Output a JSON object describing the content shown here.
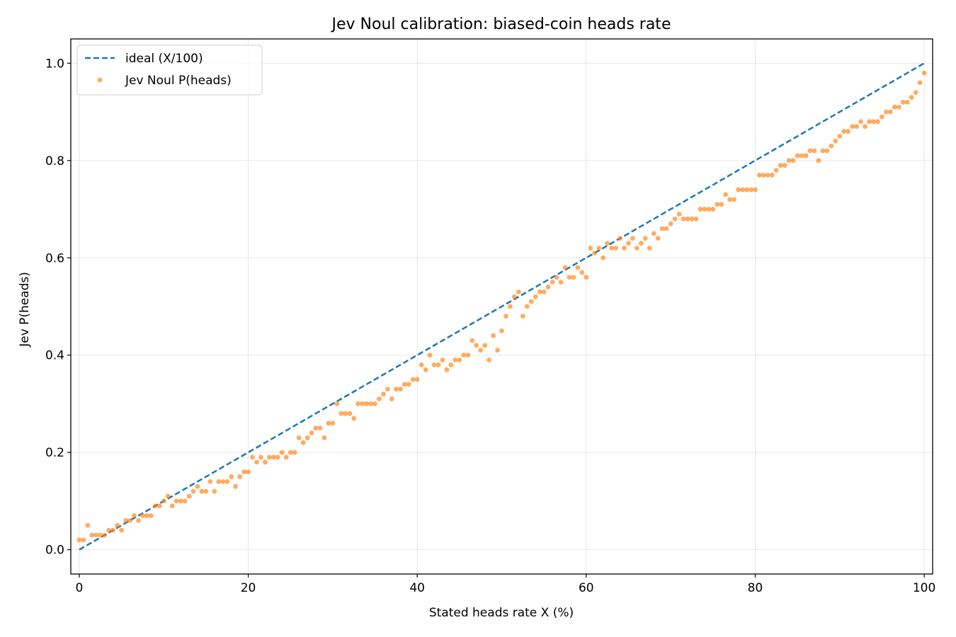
{
  "chart_data": {
    "type": "scatter",
    "title": "Jev Noul calibration: biased-coin heads rate",
    "xlabel": "Stated heads rate X (%)",
    "ylabel": "Jev P(heads)",
    "xlim": [
      -1,
      101
    ],
    "ylim": [
      -0.05,
      1.05
    ],
    "grid": true,
    "legend_position": "top-left",
    "x_ticks": [
      0,
      20,
      40,
      60,
      80,
      100
    ],
    "x_tick_labels": [
      "0",
      "20",
      "40",
      "60",
      "80",
      "100"
    ],
    "y_ticks": [
      0.0,
      0.2,
      0.4,
      0.6,
      0.8,
      1.0
    ],
    "y_tick_labels": [
      "0.0",
      "0.2",
      "0.4",
      "0.6",
      "0.8",
      "1.0"
    ],
    "series": [
      {
        "name": "ideal (X/100)",
        "kind": "line",
        "style": "dashed",
        "color": "#1f77b4",
        "x": [
          0,
          100
        ],
        "y": [
          0.0,
          1.0
        ]
      },
      {
        "name": "Jev Noul P(heads)",
        "kind": "scatter",
        "color": "#ff7f0e",
        "points": [
          [
            0,
            0.02
          ],
          [
            0.5,
            0.02
          ],
          [
            1,
            0.05
          ],
          [
            1.5,
            0.03
          ],
          [
            2,
            0.03
          ],
          [
            2.5,
            0.03
          ],
          [
            3,
            0.03
          ],
          [
            3.5,
            0.04
          ],
          [
            4,
            0.04
          ],
          [
            4.5,
            0.05
          ],
          [
            5,
            0.04
          ],
          [
            5.5,
            0.06
          ],
          [
            6,
            0.06
          ],
          [
            6.5,
            0.07
          ],
          [
            7,
            0.06
          ],
          [
            7.5,
            0.07
          ],
          [
            8,
            0.07
          ],
          [
            8.5,
            0.07
          ],
          [
            9,
            0.09
          ],
          [
            9.5,
            0.09
          ],
          [
            10,
            0.1
          ],
          [
            10.5,
            0.11
          ],
          [
            11,
            0.09
          ],
          [
            11.5,
            0.1
          ],
          [
            12,
            0.1
          ],
          [
            12.5,
            0.1
          ],
          [
            13,
            0.11
          ],
          [
            13.5,
            0.12
          ],
          [
            14,
            0.13
          ],
          [
            14.5,
            0.12
          ],
          [
            15,
            0.12
          ],
          [
            15.5,
            0.14
          ],
          [
            16,
            0.12
          ],
          [
            16.5,
            0.14
          ],
          [
            17,
            0.14
          ],
          [
            17.5,
            0.14
          ],
          [
            18,
            0.15
          ],
          [
            18.5,
            0.13
          ],
          [
            19,
            0.15
          ],
          [
            19.5,
            0.16
          ],
          [
            20,
            0.16
          ],
          [
            20.5,
            0.19
          ],
          [
            21,
            0.18
          ],
          [
            21.5,
            0.19
          ],
          [
            22,
            0.18
          ],
          [
            22.5,
            0.19
          ],
          [
            23,
            0.19
          ],
          [
            23.5,
            0.19
          ],
          [
            24,
            0.2
          ],
          [
            24.5,
            0.19
          ],
          [
            25,
            0.2
          ],
          [
            25.5,
            0.2
          ],
          [
            26,
            0.23
          ],
          [
            26.5,
            0.22
          ],
          [
            27,
            0.23
          ],
          [
            27.5,
            0.24
          ],
          [
            28,
            0.25
          ],
          [
            28.5,
            0.25
          ],
          [
            29,
            0.23
          ],
          [
            29.5,
            0.26
          ],
          [
            30,
            0.26
          ],
          [
            30.5,
            0.3
          ],
          [
            31,
            0.28
          ],
          [
            31.5,
            0.28
          ],
          [
            32,
            0.28
          ],
          [
            32.5,
            0.27
          ],
          [
            33,
            0.3
          ],
          [
            33.5,
            0.3
          ],
          [
            34,
            0.3
          ],
          [
            34.5,
            0.3
          ],
          [
            35,
            0.3
          ],
          [
            35.5,
            0.31
          ],
          [
            36,
            0.32
          ],
          [
            36.5,
            0.33
          ],
          [
            37,
            0.31
          ],
          [
            37.5,
            0.33
          ],
          [
            38,
            0.33
          ],
          [
            38.5,
            0.34
          ],
          [
            39,
            0.34
          ],
          [
            39.5,
            0.35
          ],
          [
            40,
            0.35
          ],
          [
            40.5,
            0.38
          ],
          [
            41,
            0.37
          ],
          [
            41.5,
            0.4
          ],
          [
            42,
            0.38
          ],
          [
            42.5,
            0.38
          ],
          [
            43,
            0.39
          ],
          [
            43.5,
            0.37
          ],
          [
            44,
            0.38
          ],
          [
            44.5,
            0.39
          ],
          [
            45,
            0.39
          ],
          [
            45.5,
            0.4
          ],
          [
            46,
            0.4
          ],
          [
            46.5,
            0.43
          ],
          [
            47,
            0.42
          ],
          [
            47.5,
            0.41
          ],
          [
            48,
            0.42
          ],
          [
            48.5,
            0.39
          ],
          [
            49,
            0.44
          ],
          [
            49.5,
            0.41
          ],
          [
            50,
            0.45
          ],
          [
            50.5,
            0.48
          ],
          [
            51,
            0.5
          ],
          [
            51.5,
            0.52
          ],
          [
            52,
            0.53
          ],
          [
            52.5,
            0.48
          ],
          [
            53,
            0.5
          ],
          [
            53.5,
            0.51
          ],
          [
            54,
            0.52
          ],
          [
            54.5,
            0.53
          ],
          [
            55,
            0.53
          ],
          [
            55.5,
            0.54
          ],
          [
            56,
            0.55
          ],
          [
            56.5,
            0.56
          ],
          [
            57,
            0.55
          ],
          [
            57.5,
            0.58
          ],
          [
            58,
            0.56
          ],
          [
            58.5,
            0.56
          ],
          [
            59,
            0.58
          ],
          [
            59.5,
            0.57
          ],
          [
            60,
            0.56
          ],
          [
            60.5,
            0.62
          ],
          [
            61,
            0.61
          ],
          [
            61.5,
            0.62
          ],
          [
            62,
            0.6
          ],
          [
            62.5,
            0.63
          ],
          [
            63,
            0.62
          ],
          [
            63.5,
            0.62
          ],
          [
            64,
            0.64
          ],
          [
            64.5,
            0.62
          ],
          [
            65,
            0.63
          ],
          [
            65.5,
            0.64
          ],
          [
            66,
            0.62
          ],
          [
            66.5,
            0.63
          ],
          [
            67,
            0.64
          ],
          [
            67.5,
            0.62
          ],
          [
            68,
            0.65
          ],
          [
            68.5,
            0.64
          ],
          [
            69,
            0.66
          ],
          [
            69.5,
            0.66
          ],
          [
            70,
            0.67
          ],
          [
            70.5,
            0.68
          ],
          [
            71,
            0.69
          ],
          [
            71.5,
            0.68
          ],
          [
            72,
            0.68
          ],
          [
            72.5,
            0.68
          ],
          [
            73,
            0.68
          ],
          [
            73.5,
            0.7
          ],
          [
            74,
            0.7
          ],
          [
            74.5,
            0.7
          ],
          [
            75,
            0.7
          ],
          [
            75.5,
            0.71
          ],
          [
            76,
            0.71
          ],
          [
            76.5,
            0.73
          ],
          [
            77,
            0.72
          ],
          [
            77.5,
            0.72
          ],
          [
            78,
            0.74
          ],
          [
            78.5,
            0.74
          ],
          [
            79,
            0.74
          ],
          [
            79.5,
            0.74
          ],
          [
            80,
            0.74
          ],
          [
            80.5,
            0.77
          ],
          [
            81,
            0.77
          ],
          [
            81.5,
            0.77
          ],
          [
            82,
            0.77
          ],
          [
            82.5,
            0.78
          ],
          [
            83,
            0.79
          ],
          [
            83.5,
            0.79
          ],
          [
            84,
            0.8
          ],
          [
            84.5,
            0.8
          ],
          [
            85,
            0.81
          ],
          [
            85.5,
            0.81
          ],
          [
            86,
            0.81
          ],
          [
            86.5,
            0.82
          ],
          [
            87,
            0.82
          ],
          [
            87.5,
            0.8
          ],
          [
            88,
            0.82
          ],
          [
            88.5,
            0.82
          ],
          [
            89,
            0.83
          ],
          [
            89.5,
            0.84
          ],
          [
            90,
            0.85
          ],
          [
            90.5,
            0.86
          ],
          [
            91,
            0.86
          ],
          [
            91.5,
            0.87
          ],
          [
            92,
            0.87
          ],
          [
            92.5,
            0.88
          ],
          [
            93,
            0.87
          ],
          [
            93.5,
            0.88
          ],
          [
            94,
            0.88
          ],
          [
            94.5,
            0.88
          ],
          [
            95,
            0.89
          ],
          [
            95.5,
            0.9
          ],
          [
            96,
            0.9
          ],
          [
            96.5,
            0.91
          ],
          [
            97,
            0.91
          ],
          [
            97.5,
            0.92
          ],
          [
            98,
            0.92
          ],
          [
            98.5,
            0.93
          ],
          [
            99,
            0.94
          ],
          [
            99.5,
            0.96
          ],
          [
            100,
            0.98
          ]
        ]
      }
    ]
  }
}
